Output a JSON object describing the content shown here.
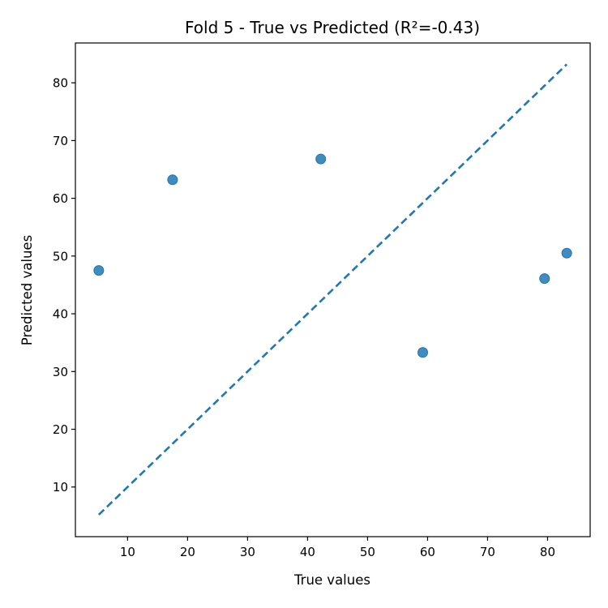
{
  "chart_data": {
    "type": "scatter",
    "title": "Fold 5 - True vs Predicted (R²=-0.43)",
    "xlabel": "True values",
    "ylabel": "Predicted values",
    "xlim": [
      1.3,
      87.1
    ],
    "ylim": [
      1.4,
      86.9
    ],
    "x_ticks": [
      10,
      20,
      30,
      40,
      50,
      60,
      70,
      80
    ],
    "y_ticks": [
      10,
      20,
      30,
      40,
      50,
      60,
      70,
      80
    ],
    "points": [
      {
        "x": 5.2,
        "y": 47.5
      },
      {
        "x": 17.5,
        "y": 63.2
      },
      {
        "x": 42.2,
        "y": 66.8
      },
      {
        "x": 59.2,
        "y": 33.3
      },
      {
        "x": 79.5,
        "y": 46.1
      },
      {
        "x": 83.2,
        "y": 50.5
      }
    ],
    "reference_line": {
      "style": "dashed",
      "from": [
        5.2,
        5.2
      ],
      "to": [
        83.2,
        83.2
      ]
    },
    "point_color": "#1f77b4",
    "line_color": "#1f77b4",
    "grid": false
  }
}
